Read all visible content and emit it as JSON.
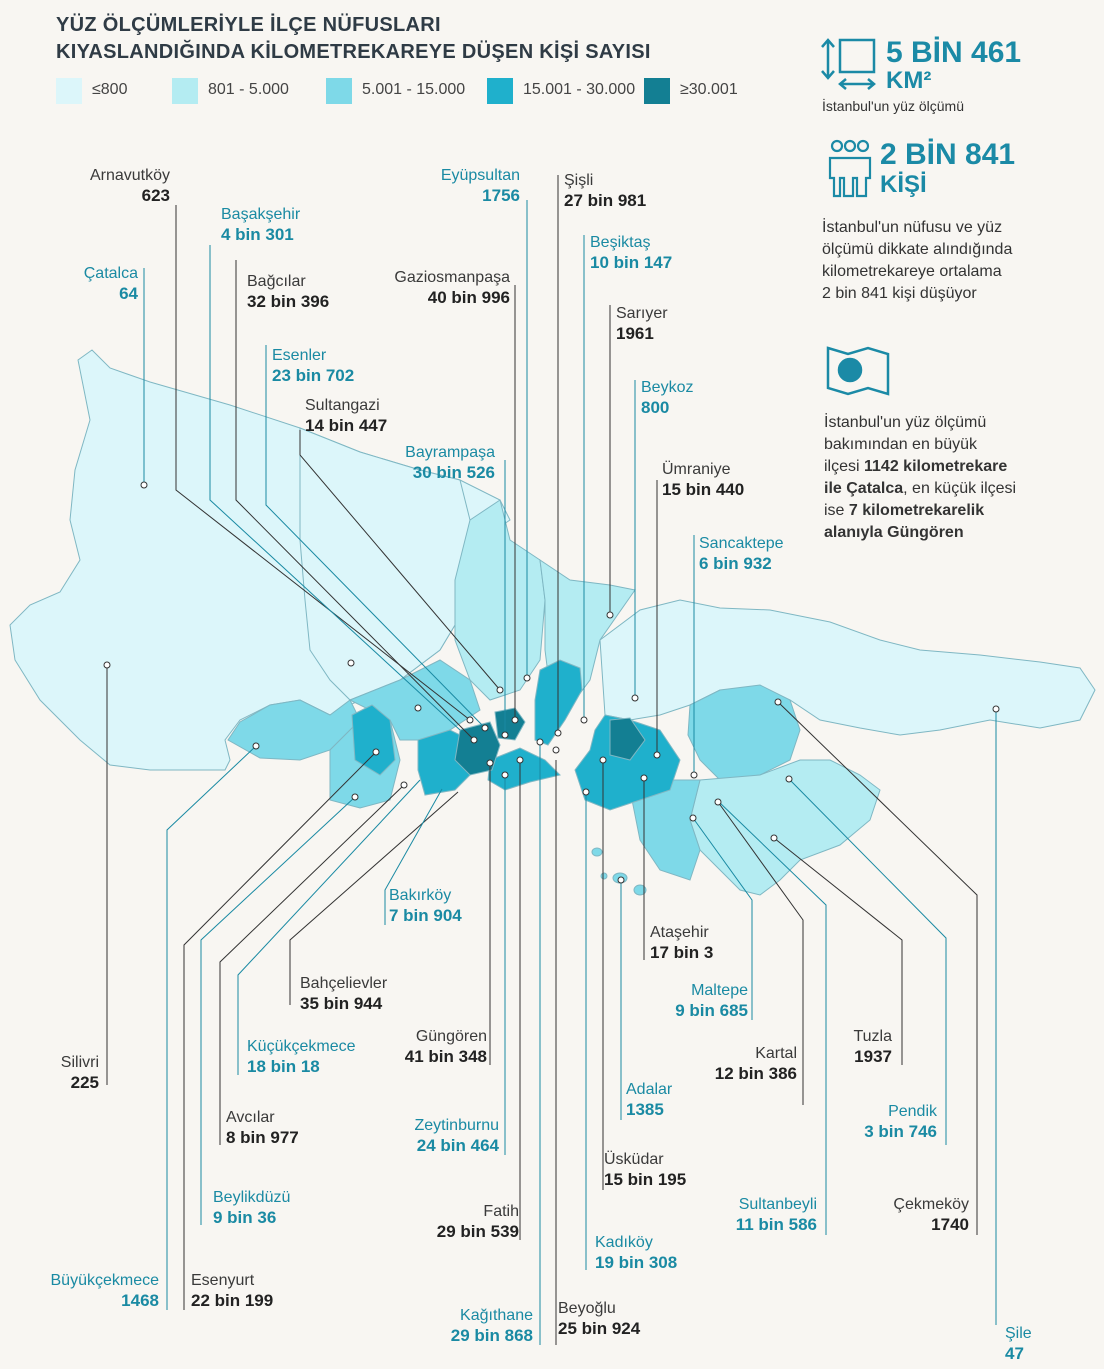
{
  "title": {
    "line1": "YÜZ ÖLÇÜMLERİYLE İLÇE NÜFUSLARI",
    "line2": "KIYASLANDIĞINDA KİLOMETREKAREYE DÜŞEN KİŞİ SAYISI"
  },
  "legend": [
    {
      "label": "≤800",
      "color": "#dcf6fa"
    },
    {
      "label": "801 - 5.000",
      "color": "#b4ecf2"
    },
    {
      "label": "5.001 - 15.000",
      "color": "#7ed9e8"
    },
    {
      "label": "15.001 - 30.000",
      "color": "#1fb0cc"
    },
    {
      "label": "≥30.001",
      "color": "#137f93"
    }
  ],
  "stats": {
    "area_value": "5 BİN 461",
    "area_unit": "KM²",
    "area_caption": "İstanbul'un yüz ölçümü",
    "density_value": "2 BİN 841",
    "density_unit": "KİŞİ",
    "density_caption": [
      "İstanbul'un nüfusu ve yüz",
      "ölçümü dikkate alındığında",
      "kilometrekareye ortalama",
      "2 bin 841 kişi düşüyor"
    ],
    "extremes": {
      "l1": "İstanbul'un yüz ölçümü",
      "l2": "bakımından en büyük",
      "l3a": "ilçesi ",
      "l3b": "1142 kilometrekare",
      "l4a": "ile Çatalca",
      "l4b": ", en küçük ilçesi",
      "l5a": "ise ",
      "l5b": "7 kilometrekarelik",
      "l6": "alanıyla Güngören"
    }
  },
  "districts": {
    "arnavutkoy": {
      "name": "Arnavutköy",
      "value": "623"
    },
    "basaksehir": {
      "name": "Başakşehir",
      "value": "4 bin 301"
    },
    "catalca": {
      "name": "Çatalca",
      "value": "64"
    },
    "bagcilar": {
      "name": "Bağcılar",
      "value": "32 bin 396"
    },
    "esenler": {
      "name": "Esenler",
      "value": "23 bin 702"
    },
    "sultangazi": {
      "name": "Sultangazi",
      "value": "14 bin 447"
    },
    "eyupsultan": {
      "name": "Eyüpsultan",
      "value": "1756"
    },
    "gaziosmanpasa": {
      "name": "Gaziosmanpaşa",
      "value": "40 bin 996"
    },
    "bayrampasa": {
      "name": "Bayrampaşa",
      "value": "30 bin 526"
    },
    "sisli": {
      "name": "Şişli",
      "value": "27 bin 981"
    },
    "besiktas": {
      "name": "Beşiktaş",
      "value": "10 bin 147"
    },
    "sariyer": {
      "name": "Sarıyer",
      "value": "1961"
    },
    "beykoz": {
      "name": "Beykoz",
      "value": "800"
    },
    "umraniye": {
      "name": "Ümraniye",
      "value": "15 bin 440"
    },
    "sancaktepe": {
      "name": "Sancaktepe",
      "value": "6 bin 932"
    },
    "bakirkoy": {
      "name": "Bakırköy",
      "value": "7 bin 904"
    },
    "atasehir": {
      "name": "Ataşehir",
      "value": "17 bin 3"
    },
    "bahcelievler": {
      "name": "Bahçelievler",
      "value": "35 bin 944"
    },
    "maltepe": {
      "name": "Maltepe",
      "value": "9 bin 685"
    },
    "kucukcekmece": {
      "name": "Küçükçekmece",
      "value": "18 bin 18"
    },
    "gungoren": {
      "name": "Güngören",
      "value": "41 bin 348"
    },
    "tuzla": {
      "name": "Tuzla",
      "value": "1937"
    },
    "kartal": {
      "name": "Kartal",
      "value": "12 bin 386"
    },
    "silivri": {
      "name": "Silivri",
      "value": "225"
    },
    "adalar": {
      "name": "Adalar",
      "value": "1385"
    },
    "avcilar": {
      "name": "Avcılar",
      "value": "8 bin 977"
    },
    "zeytinburnu": {
      "name": "Zeytinburnu",
      "value": "24 bin 464"
    },
    "pendik": {
      "name": "Pendik",
      "value": "3 bin 746"
    },
    "uskudar": {
      "name": "Üsküdar",
      "value": "15 bin 195"
    },
    "beylikduzu": {
      "name": "Beylikdüzü",
      "value": "9 bin 36"
    },
    "sultanbeyli": {
      "name": "Sultanbeyli",
      "value": "11 bin 586"
    },
    "cekmekoy": {
      "name": "Çekmeköy",
      "value": "1740"
    },
    "fatih": {
      "name": "Fatih",
      "value": "29 bin 539"
    },
    "kadikoy": {
      "name": "Kadıköy",
      "value": "19 bin 308"
    },
    "buyukcekmece": {
      "name": "Büyükçekmece",
      "value": "1468"
    },
    "esenyurt": {
      "name": "Esenyurt",
      "value": "22 bin 199"
    },
    "kagithane": {
      "name": "Kağıthane",
      "value": "29 bin 868"
    },
    "beyoglu": {
      "name": "Beyoğlu",
      "value": "25 bin 924"
    },
    "sile": {
      "name": "Şile",
      "value": "47"
    }
  }
}
